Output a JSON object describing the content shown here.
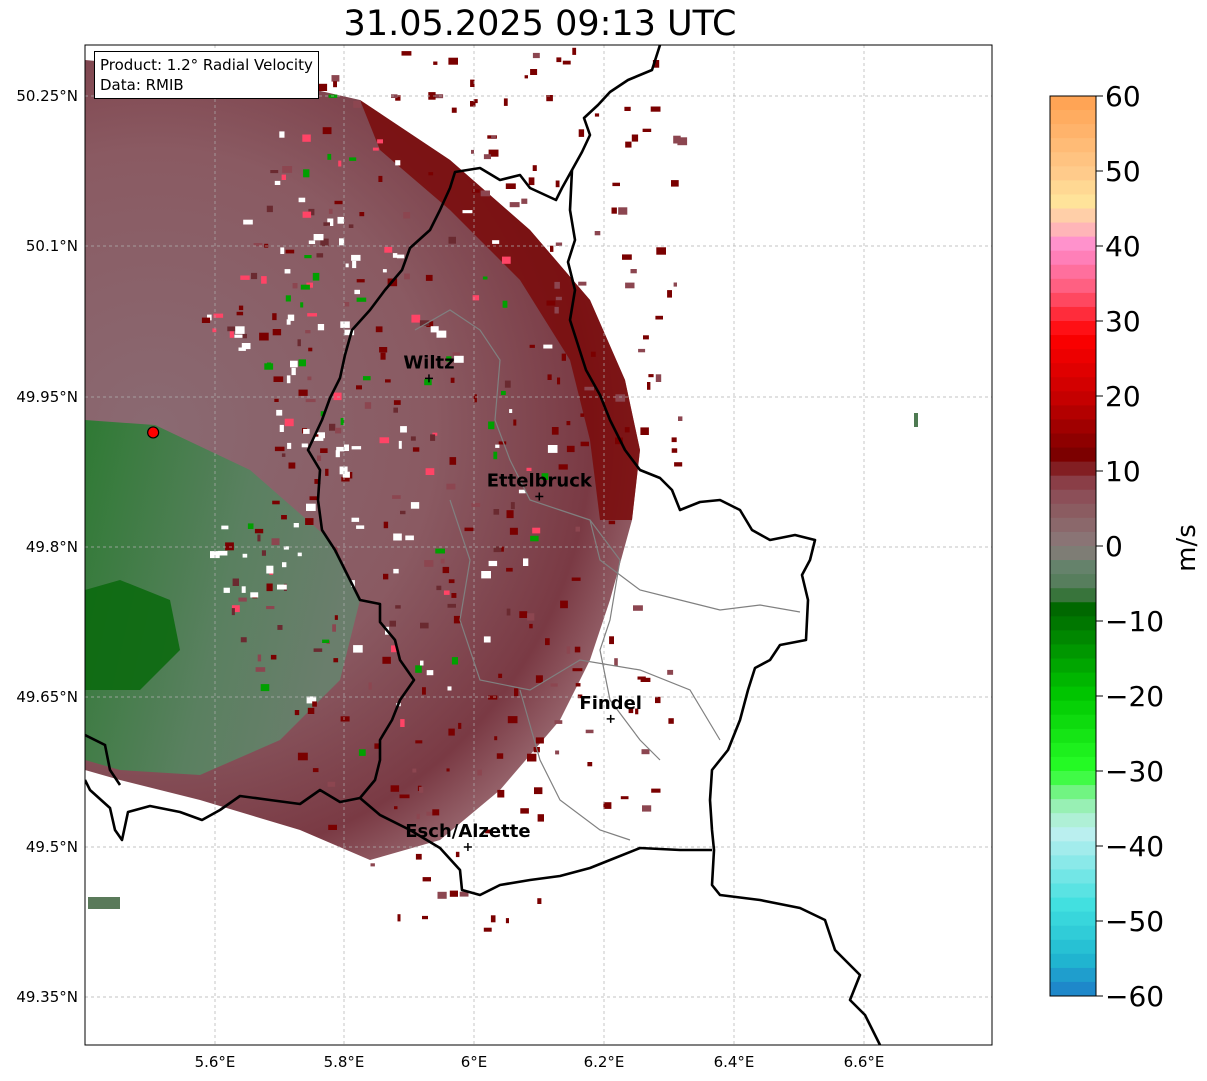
{
  "title": "31.05.2025 09:13 UTC",
  "info": {
    "product": "Product: 1.2° Radial Velocity",
    "data_source": "Data: RMIB"
  },
  "map": {
    "lat_ticks": [
      "50.25°N",
      "50.1°N",
      "49.95°N",
      "49.8°N",
      "49.65°N",
      "49.5°N",
      "49.35°N"
    ],
    "lon_ticks": [
      "5.6°E",
      "5.8°E",
      "6°E",
      "6.2°E",
      "6.4°E",
      "6.6°E"
    ],
    "cities": [
      {
        "name": "Wiltz",
        "lon": 5.93,
        "lat": 49.968
      },
      {
        "name": "Ettelbruck",
        "lon": 6.1,
        "lat": 49.85
      },
      {
        "name": "Findel",
        "lon": 6.21,
        "lat": 49.628
      },
      {
        "name": "Esch/Alzette",
        "lon": 5.99,
        "lat": 49.5
      }
    ],
    "radar_site": {
      "lon": 5.505,
      "lat": 49.914
    }
  },
  "colorbar": {
    "label": "m/s",
    "ticks": [
      "60",
      "50",
      "40",
      "30",
      "20",
      "10",
      "0",
      "−10",
      "−20",
      "−30",
      "−40",
      "−50",
      "−60"
    ],
    "stops": [
      {
        "v": 60,
        "color": "#ffa050"
      },
      {
        "v": 50,
        "color": "#ffc98a"
      },
      {
        "v": 46,
        "color": "#ffe49a"
      },
      {
        "v": 43,
        "color": "#ffc4b0"
      },
      {
        "v": 40,
        "color": "#ff8ccf"
      },
      {
        "v": 34,
        "color": "#ff5a78"
      },
      {
        "v": 28,
        "color": "#ff0000"
      },
      {
        "v": 20,
        "color": "#c80000"
      },
      {
        "v": 12,
        "color": "#7a0000"
      },
      {
        "v": 8,
        "color": "#8c4650"
      },
      {
        "v": 0,
        "color": "#8a7a7a"
      },
      {
        "v": -3,
        "color": "#62826a"
      },
      {
        "v": -6,
        "color": "#4e7a52"
      },
      {
        "v": -8,
        "color": "#006400"
      },
      {
        "v": -20,
        "color": "#00c800"
      },
      {
        "v": -30,
        "color": "#28ff28"
      },
      {
        "v": -34,
        "color": "#90f0a8"
      },
      {
        "v": -38,
        "color": "#c0f0f0"
      },
      {
        "v": -48,
        "color": "#40e0e0"
      },
      {
        "v": -55,
        "color": "#20b8d0"
      },
      {
        "v": -60,
        "color": "#1e7dc8"
      }
    ]
  }
}
